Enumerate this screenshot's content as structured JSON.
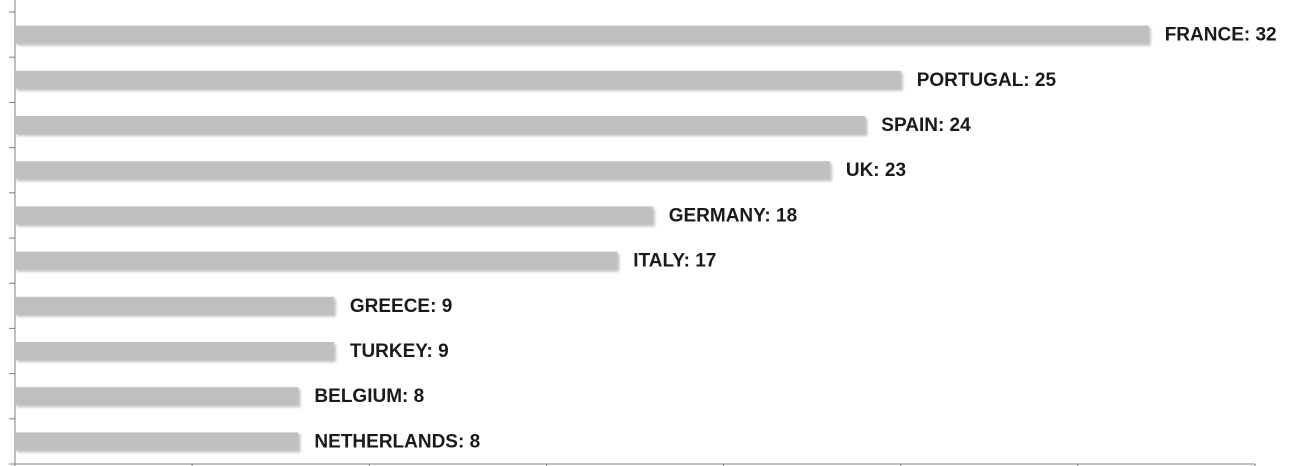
{
  "chart_data": {
    "type": "barh",
    "values": [
      32,
      25,
      24,
      23,
      18,
      17,
      9,
      9,
      8,
      8
    ],
    "value_labels": [
      "FRANCE: 32",
      "PORTUGAL: 25",
      "SPAIN: 24",
      "UK: 23",
      "GERMANY: 18",
      "ITALY: 17",
      "GREECE: 9",
      "TURKEY: 9",
      "BELGIUM: 8",
      "NETHERLANDS: 8"
    ],
    "color": "#bfbfbf",
    "xlim": [
      0,
      35
    ],
    "xticks": [
      0,
      5,
      10,
      15,
      20,
      25,
      30,
      35
    ]
  }
}
